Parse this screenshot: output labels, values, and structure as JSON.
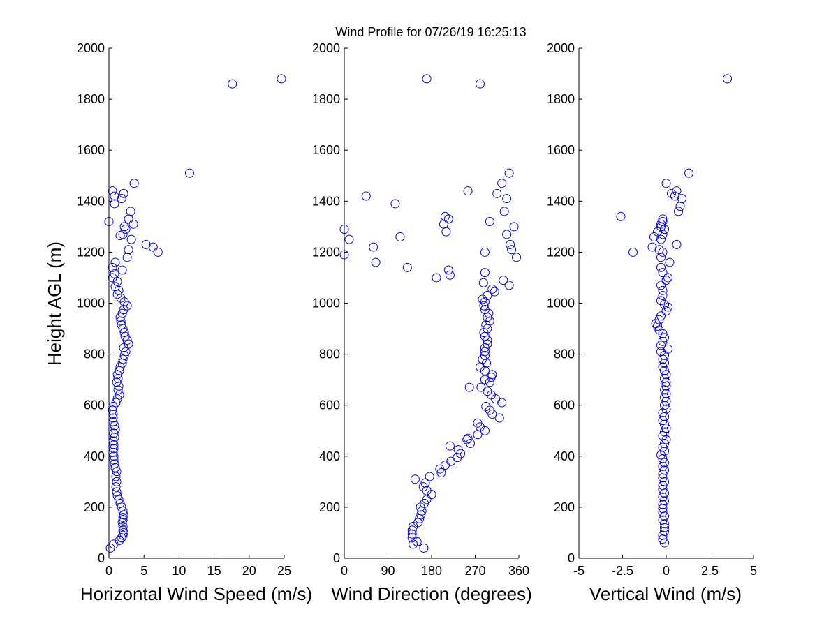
{
  "figure": {
    "title": "Wind Profile for  07/26/19 16:25:13",
    "ylabel": "Height AGL (m)"
  },
  "colors": {
    "marker": "#0000ff",
    "axis": "#000000",
    "background": "#ffffff"
  },
  "chart_data": [
    {
      "type": "scatter",
      "id": "speed",
      "xlabel": "Horizontal Wind Speed (m/s)",
      "xlim": [
        0,
        25
      ],
      "xticks": [
        0,
        5,
        10,
        15,
        20,
        25
      ],
      "xtick_labels": [
        "0",
        "5",
        "10",
        "15",
        "20",
        "25"
      ],
      "ylim": [
        0,
        2000
      ],
      "yticks": [
        0,
        200,
        400,
        600,
        800,
        1000,
        1200,
        1400,
        1600,
        1800,
        2000
      ],
      "ytick_labels": [
        "0",
        "200",
        "400",
        "600",
        "800",
        "1000",
        "1200",
        "1400",
        "1600",
        "1800",
        "2000"
      ],
      "marker": "circle",
      "points": [
        [
          0.2,
          40
        ],
        [
          0.7,
          55
        ],
        [
          1.5,
          70
        ],
        [
          1.8,
          80
        ],
        [
          2,
          90
        ],
        [
          2.1,
          100
        ],
        [
          2,
          110
        ],
        [
          2,
          125
        ],
        [
          1.9,
          140
        ],
        [
          2,
          150
        ],
        [
          2,
          160
        ],
        [
          2.1,
          170
        ],
        [
          2,
          185
        ],
        [
          1.8,
          200
        ],
        [
          1.6,
          215
        ],
        [
          1.4,
          230
        ],
        [
          1.2,
          245
        ],
        [
          1.1,
          260
        ],
        [
          1,
          280
        ],
        [
          1.1,
          300
        ],
        [
          1,
          320
        ],
        [
          1.1,
          340
        ],
        [
          0.9,
          355
        ],
        [
          0.8,
          370
        ],
        [
          0.7,
          385
        ],
        [
          0.7,
          400
        ],
        [
          0.6,
          415
        ],
        [
          0.7,
          430
        ],
        [
          0.7,
          445
        ],
        [
          0.6,
          460
        ],
        [
          0.8,
          475
        ],
        [
          0.7,
          490
        ],
        [
          0.9,
          505
        ],
        [
          0.8,
          520
        ],
        [
          0.6,
          535
        ],
        [
          0.6,
          550
        ],
        [
          0.6,
          565
        ],
        [
          0.5,
          580
        ],
        [
          0.6,
          595
        ],
        [
          1,
          610
        ],
        [
          1.2,
          625
        ],
        [
          1.5,
          640
        ],
        [
          1.3,
          660
        ],
        [
          1.4,
          675
        ],
        [
          1.1,
          690
        ],
        [
          1.3,
          705
        ],
        [
          1.2,
          720
        ],
        [
          1.5,
          735
        ],
        [
          1.6,
          750
        ],
        [
          1.9,
          765
        ],
        [
          2,
          780
        ],
        [
          2.2,
          795
        ],
        [
          2.4,
          810
        ],
        [
          2.1,
          825
        ],
        [
          2.8,
          840
        ],
        [
          2.6,
          855
        ],
        [
          2.3,
          870
        ],
        [
          2.2,
          885
        ],
        [
          2,
          900
        ],
        [
          1.8,
          915
        ],
        [
          1.7,
          930
        ],
        [
          1.6,
          945
        ],
        [
          1.9,
          960
        ],
        [
          2.1,
          975
        ],
        [
          2.6,
          990
        ],
        [
          2.2,
          1005
        ],
        [
          1.7,
          1020
        ],
        [
          1.2,
          1035
        ],
        [
          1.4,
          1050
        ],
        [
          0.9,
          1065
        ],
        [
          1.2,
          1085
        ],
        [
          0.5,
          1100
        ],
        [
          0.8,
          1115
        ],
        [
          1.9,
          1130
        ],
        [
          0.5,
          1140
        ],
        [
          0.9,
          1160
        ],
        [
          2.6,
          1180
        ],
        [
          2.8,
          1210
        ],
        [
          7,
          1200
        ],
        [
          6.3,
          1220
        ],
        [
          5.3,
          1230
        ],
        [
          3.2,
          1250
        ],
        [
          1.6,
          1265
        ],
        [
          2,
          1270
        ],
        [
          2.4,
          1290
        ],
        [
          2.2,
          1300
        ],
        [
          3.5,
          1310
        ],
        [
          0,
          1320
        ],
        [
          2.8,
          1330
        ],
        [
          3.1,
          1360
        ],
        [
          0.8,
          1390
        ],
        [
          1.8,
          1410
        ],
        [
          0.8,
          1420
        ],
        [
          2.1,
          1430
        ],
        [
          0.5,
          1440
        ],
        [
          3.6,
          1470
        ],
        [
          11.5,
          1510
        ],
        [
          17.6,
          1860
        ],
        [
          24.6,
          1880
        ]
      ]
    },
    {
      "type": "scatter",
      "id": "direction",
      "xlabel": "Wind Direction (degrees)",
      "xlim": [
        0,
        360
      ],
      "xticks": [
        0,
        90,
        180,
        270,
        360
      ],
      "xtick_labels": [
        "0",
        "90",
        "180",
        "270",
        "360"
      ],
      "ylim": [
        0,
        2000
      ],
      "yticks": [
        0,
        200,
        400,
        600,
        800,
        1000,
        1200,
        1400,
        1600,
        1800,
        2000
      ],
      "ytick_labels": [
        "0",
        "200",
        "400",
        "600",
        "800",
        "1000",
        "1200",
        "1400",
        "1600",
        "1800",
        "2000"
      ],
      "marker": "circle",
      "points": [
        [
          164,
          40
        ],
        [
          142,
          55
        ],
        [
          150,
          65
        ],
        [
          140,
          80
        ],
        [
          140,
          95
        ],
        [
          140,
          110
        ],
        [
          142,
          125
        ],
        [
          152,
          140
        ],
        [
          155,
          155
        ],
        [
          158,
          170
        ],
        [
          160,
          185
        ],
        [
          157,
          200
        ],
        [
          165,
          215
        ],
        [
          170,
          230
        ],
        [
          180,
          250
        ],
        [
          170,
          265
        ],
        [
          163,
          280
        ],
        [
          167,
          295
        ],
        [
          146,
          310
        ],
        [
          176,
          320
        ],
        [
          200,
          335
        ],
        [
          197,
          350
        ],
        [
          208,
          365
        ],
        [
          220,
          380
        ],
        [
          233,
          395
        ],
        [
          240,
          410
        ],
        [
          235,
          425
        ],
        [
          218,
          440
        ],
        [
          260,
          450
        ],
        [
          253,
          465
        ],
        [
          255,
          470
        ],
        [
          275,
          485
        ],
        [
          290,
          500
        ],
        [
          280,
          515
        ],
        [
          275,
          530
        ],
        [
          320,
          550
        ],
        [
          305,
          565
        ],
        [
          300,
          580
        ],
        [
          292,
          595
        ],
        [
          325,
          610
        ],
        [
          312,
          625
        ],
        [
          303,
          640
        ],
        [
          295,
          655
        ],
        [
          282,
          670
        ],
        [
          258,
          670
        ],
        [
          300,
          690
        ],
        [
          290,
          700
        ],
        [
          303,
          710
        ],
        [
          305,
          720
        ],
        [
          290,
          735
        ],
        [
          280,
          750
        ],
        [
          293,
          765
        ],
        [
          285,
          780
        ],
        [
          290,
          795
        ],
        [
          290,
          810
        ],
        [
          290,
          825
        ],
        [
          295,
          840
        ],
        [
          295,
          855
        ],
        [
          290,
          870
        ],
        [
          288,
          885
        ],
        [
          295,
          900
        ],
        [
          292,
          915
        ],
        [
          300,
          930
        ],
        [
          295,
          945
        ],
        [
          298,
          960
        ],
        [
          290,
          975
        ],
        [
          288,
          990
        ],
        [
          290,
          1005
        ],
        [
          285,
          1015
        ],
        [
          295,
          1030
        ],
        [
          310,
          1045
        ],
        [
          305,
          1055
        ],
        [
          287,
          1080
        ],
        [
          340,
          1070
        ],
        [
          328,
          1090
        ],
        [
          190,
          1100
        ],
        [
          218,
          1110
        ],
        [
          215,
          1130
        ],
        [
          130,
          1140
        ],
        [
          65,
          1160
        ],
        [
          290,
          1120
        ],
        [
          355,
          1180
        ],
        [
          0,
          1190
        ],
        [
          290,
          1200
        ],
        [
          345,
          1210
        ],
        [
          342,
          1230
        ],
        [
          10,
          1250
        ],
        [
          115,
          1260
        ],
        [
          60,
          1220
        ],
        [
          335,
          1270
        ],
        [
          210,
          1280
        ],
        [
          0,
          1290
        ],
        [
          350,
          1300
        ],
        [
          205,
          1310
        ],
        [
          300,
          1320
        ],
        [
          215,
          1330
        ],
        [
          208,
          1340
        ],
        [
          330,
          1360
        ],
        [
          105,
          1390
        ],
        [
          335,
          1410
        ],
        [
          45,
          1420
        ],
        [
          325,
          1470
        ],
        [
          315,
          1430
        ],
        [
          255,
          1440
        ],
        [
          340,
          1510
        ],
        [
          170,
          1880
        ],
        [
          280,
          1860
        ]
      ]
    },
    {
      "type": "scatter",
      "id": "vertical",
      "xlabel": "Vertical Wind (m/s)",
      "xlim": [
        -5,
        5
      ],
      "xticks": [
        -5,
        -2.5,
        0,
        2.5,
        5
      ],
      "xtick_labels": [
        "-5",
        "-2.5",
        "0",
        "2.5",
        "5"
      ],
      "ylim": [
        0,
        2000
      ],
      "yticks": [
        0,
        200,
        400,
        600,
        800,
        1000,
        1200,
        1400,
        1600,
        1800,
        2000
      ],
      "ytick_labels": [
        "0",
        "200",
        "400",
        "600",
        "800",
        "1000",
        "1200",
        "1400",
        "1600",
        "1800",
        "2000"
      ],
      "marker": "circle",
      "points": [
        [
          -0.1,
          60
        ],
        [
          -0.2,
          75
        ],
        [
          -0.2,
          90
        ],
        [
          -0.1,
          105
        ],
        [
          -0.1,
          120
        ],
        [
          -0.1,
          135
        ],
        [
          -0.2,
          150
        ],
        [
          -0.1,
          165
        ],
        [
          -0.2,
          180
        ],
        [
          -0.2,
          195
        ],
        [
          -0.2,
          210
        ],
        [
          -0.1,
          225
        ],
        [
          -0.2,
          240
        ],
        [
          -0.1,
          255
        ],
        [
          -0.2,
          270
        ],
        [
          -0.2,
          285
        ],
        [
          -0.1,
          300
        ],
        [
          -0.2,
          315
        ],
        [
          -0.2,
          330
        ],
        [
          -0.1,
          345
        ],
        [
          -0.2,
          360
        ],
        [
          -0.1,
          375
        ],
        [
          -0.2,
          390
        ],
        [
          -0.3,
          405
        ],
        [
          -0.1,
          420
        ],
        [
          -0.2,
          435
        ],
        [
          -0.1,
          450
        ],
        [
          0,
          465
        ],
        [
          -0.2,
          480
        ],
        [
          -0.1,
          495
        ],
        [
          0,
          510
        ],
        [
          -0.1,
          525
        ],
        [
          -0.2,
          540
        ],
        [
          -0.1,
          555
        ],
        [
          -0.2,
          570
        ],
        [
          0,
          585
        ],
        [
          -0.1,
          600
        ],
        [
          0,
          615
        ],
        [
          -0.1,
          630
        ],
        [
          0,
          645
        ],
        [
          -0.1,
          660
        ],
        [
          0,
          675
        ],
        [
          0,
          690
        ],
        [
          -0.1,
          705
        ],
        [
          0,
          720
        ],
        [
          -0.1,
          735
        ],
        [
          -0.2,
          750
        ],
        [
          -0.1,
          765
        ],
        [
          -0.2,
          780
        ],
        [
          -0.1,
          795
        ],
        [
          -0.3,
          810
        ],
        [
          0.1,
          820
        ],
        [
          -0.3,
          835
        ],
        [
          -0.2,
          850
        ],
        [
          -0.1,
          865
        ],
        [
          -0.2,
          880
        ],
        [
          -0.4,
          895
        ],
        [
          -0.5,
          910
        ],
        [
          -0.6,
          920
        ],
        [
          -0.4,
          935
        ],
        [
          -0.3,
          950
        ],
        [
          0,
          970
        ],
        [
          0.1,
          985
        ],
        [
          -0.1,
          995
        ],
        [
          -0.3,
          1010
        ],
        [
          -0.2,
          1030
        ],
        [
          -0.2,
          1050
        ],
        [
          -0.3,
          1070
        ],
        [
          0,
          1090
        ],
        [
          0.1,
          1100
        ],
        [
          -0.2,
          1120
        ],
        [
          -0.3,
          1140
        ],
        [
          0.2,
          1160
        ],
        [
          -0.3,
          1180
        ],
        [
          -0.2,
          1200
        ],
        [
          -1.9,
          1200
        ],
        [
          -0.4,
          1210
        ],
        [
          -0.8,
          1220
        ],
        [
          0.6,
          1230
        ],
        [
          -0.3,
          1250
        ],
        [
          -0.7,
          1260
        ],
        [
          -0.2,
          1270
        ],
        [
          -0.5,
          1280
        ],
        [
          -0.1,
          1290
        ],
        [
          -0.3,
          1300
        ],
        [
          -0.3,
          1310
        ],
        [
          -0.2,
          1320
        ],
        [
          -0.2,
          1330
        ],
        [
          -2.6,
          1340
        ],
        [
          0.7,
          1360
        ],
        [
          0.8,
          1380
        ],
        [
          0.9,
          1410
        ],
        [
          0.5,
          1420
        ],
        [
          0.3,
          1430
        ],
        [
          0.6,
          1440
        ],
        [
          0,
          1470
        ],
        [
          1.3,
          1510
        ],
        [
          3.5,
          1880
        ]
      ]
    }
  ]
}
